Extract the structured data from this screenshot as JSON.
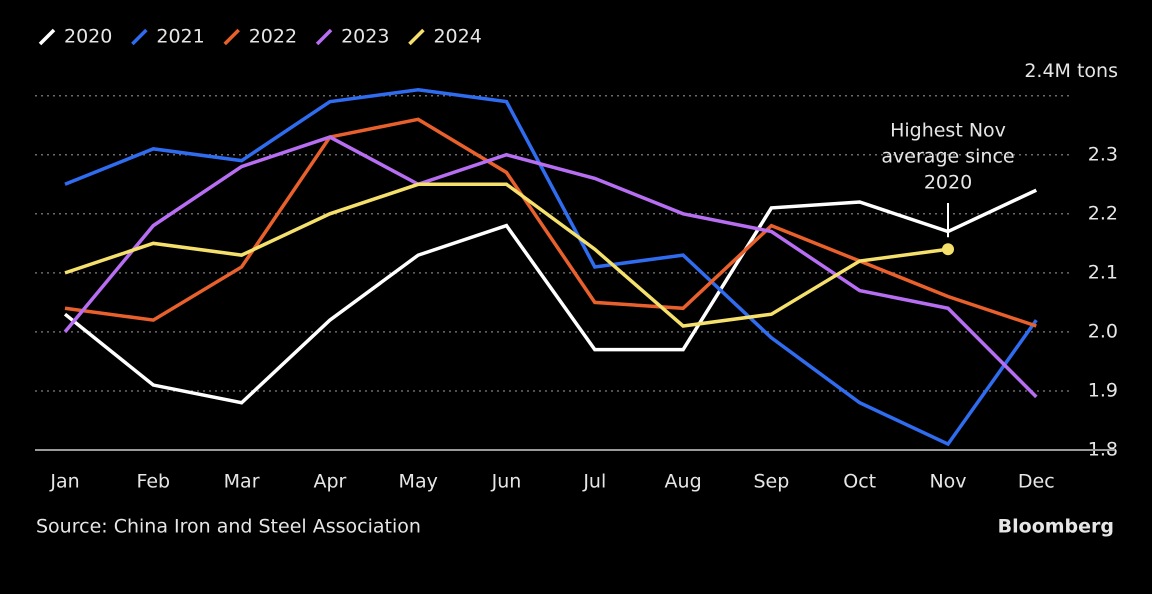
{
  "chart_data": {
    "type": "line",
    "categories": [
      "Jan",
      "Feb",
      "Mar",
      "Apr",
      "May",
      "Jun",
      "Jul",
      "Aug",
      "Sep",
      "Oct",
      "Nov",
      "Dec"
    ],
    "series": [
      {
        "name": "2020",
        "color": "#ffffff",
        "values": [
          2.03,
          1.91,
          1.88,
          2.02,
          2.13,
          2.18,
          1.97,
          1.97,
          2.21,
          2.22,
          2.17,
          2.24
        ]
      },
      {
        "name": "2021",
        "color": "#2f6cf0",
        "values": [
          2.25,
          2.31,
          2.29,
          2.39,
          2.41,
          2.39,
          2.11,
          2.13,
          1.99,
          1.88,
          1.81,
          2.02
        ]
      },
      {
        "name": "2022",
        "color": "#e8602c",
        "values": [
          2.04,
          2.02,
          2.11,
          2.33,
          2.36,
          2.27,
          2.05,
          2.04,
          2.18,
          2.12,
          2.06,
          2.01
        ]
      },
      {
        "name": "2023",
        "color": "#b86ef2",
        "values": [
          2.0,
          2.18,
          2.28,
          2.33,
          2.25,
          2.3,
          2.26,
          2.2,
          2.17,
          2.07,
          2.04,
          1.89
        ]
      },
      {
        "name": "2024",
        "color": "#f4e06a",
        "values": [
          2.1,
          2.15,
          2.13,
          2.2,
          2.25,
          2.25,
          2.14,
          2.01,
          2.03,
          2.12,
          2.14,
          null
        ]
      }
    ],
    "ylim": [
      1.8,
      2.43
    ],
    "yticks": [
      {
        "value": 1.8,
        "label": "1.8"
      },
      {
        "value": 1.9,
        "label": "1.9"
      },
      {
        "value": 2.0,
        "label": "2.0"
      },
      {
        "value": 2.1,
        "label": "2.1"
      },
      {
        "value": 2.2,
        "label": "2.2"
      },
      {
        "value": 2.3,
        "label": "2.3"
      },
      {
        "value": 2.4,
        "label": "2.4M tons"
      }
    ],
    "grid": true,
    "annotation": {
      "lines": [
        "Highest Nov",
        "average since",
        "2020"
      ]
    },
    "source": "Source: China Iron and Steel Association",
    "credit": "Bloomberg"
  }
}
